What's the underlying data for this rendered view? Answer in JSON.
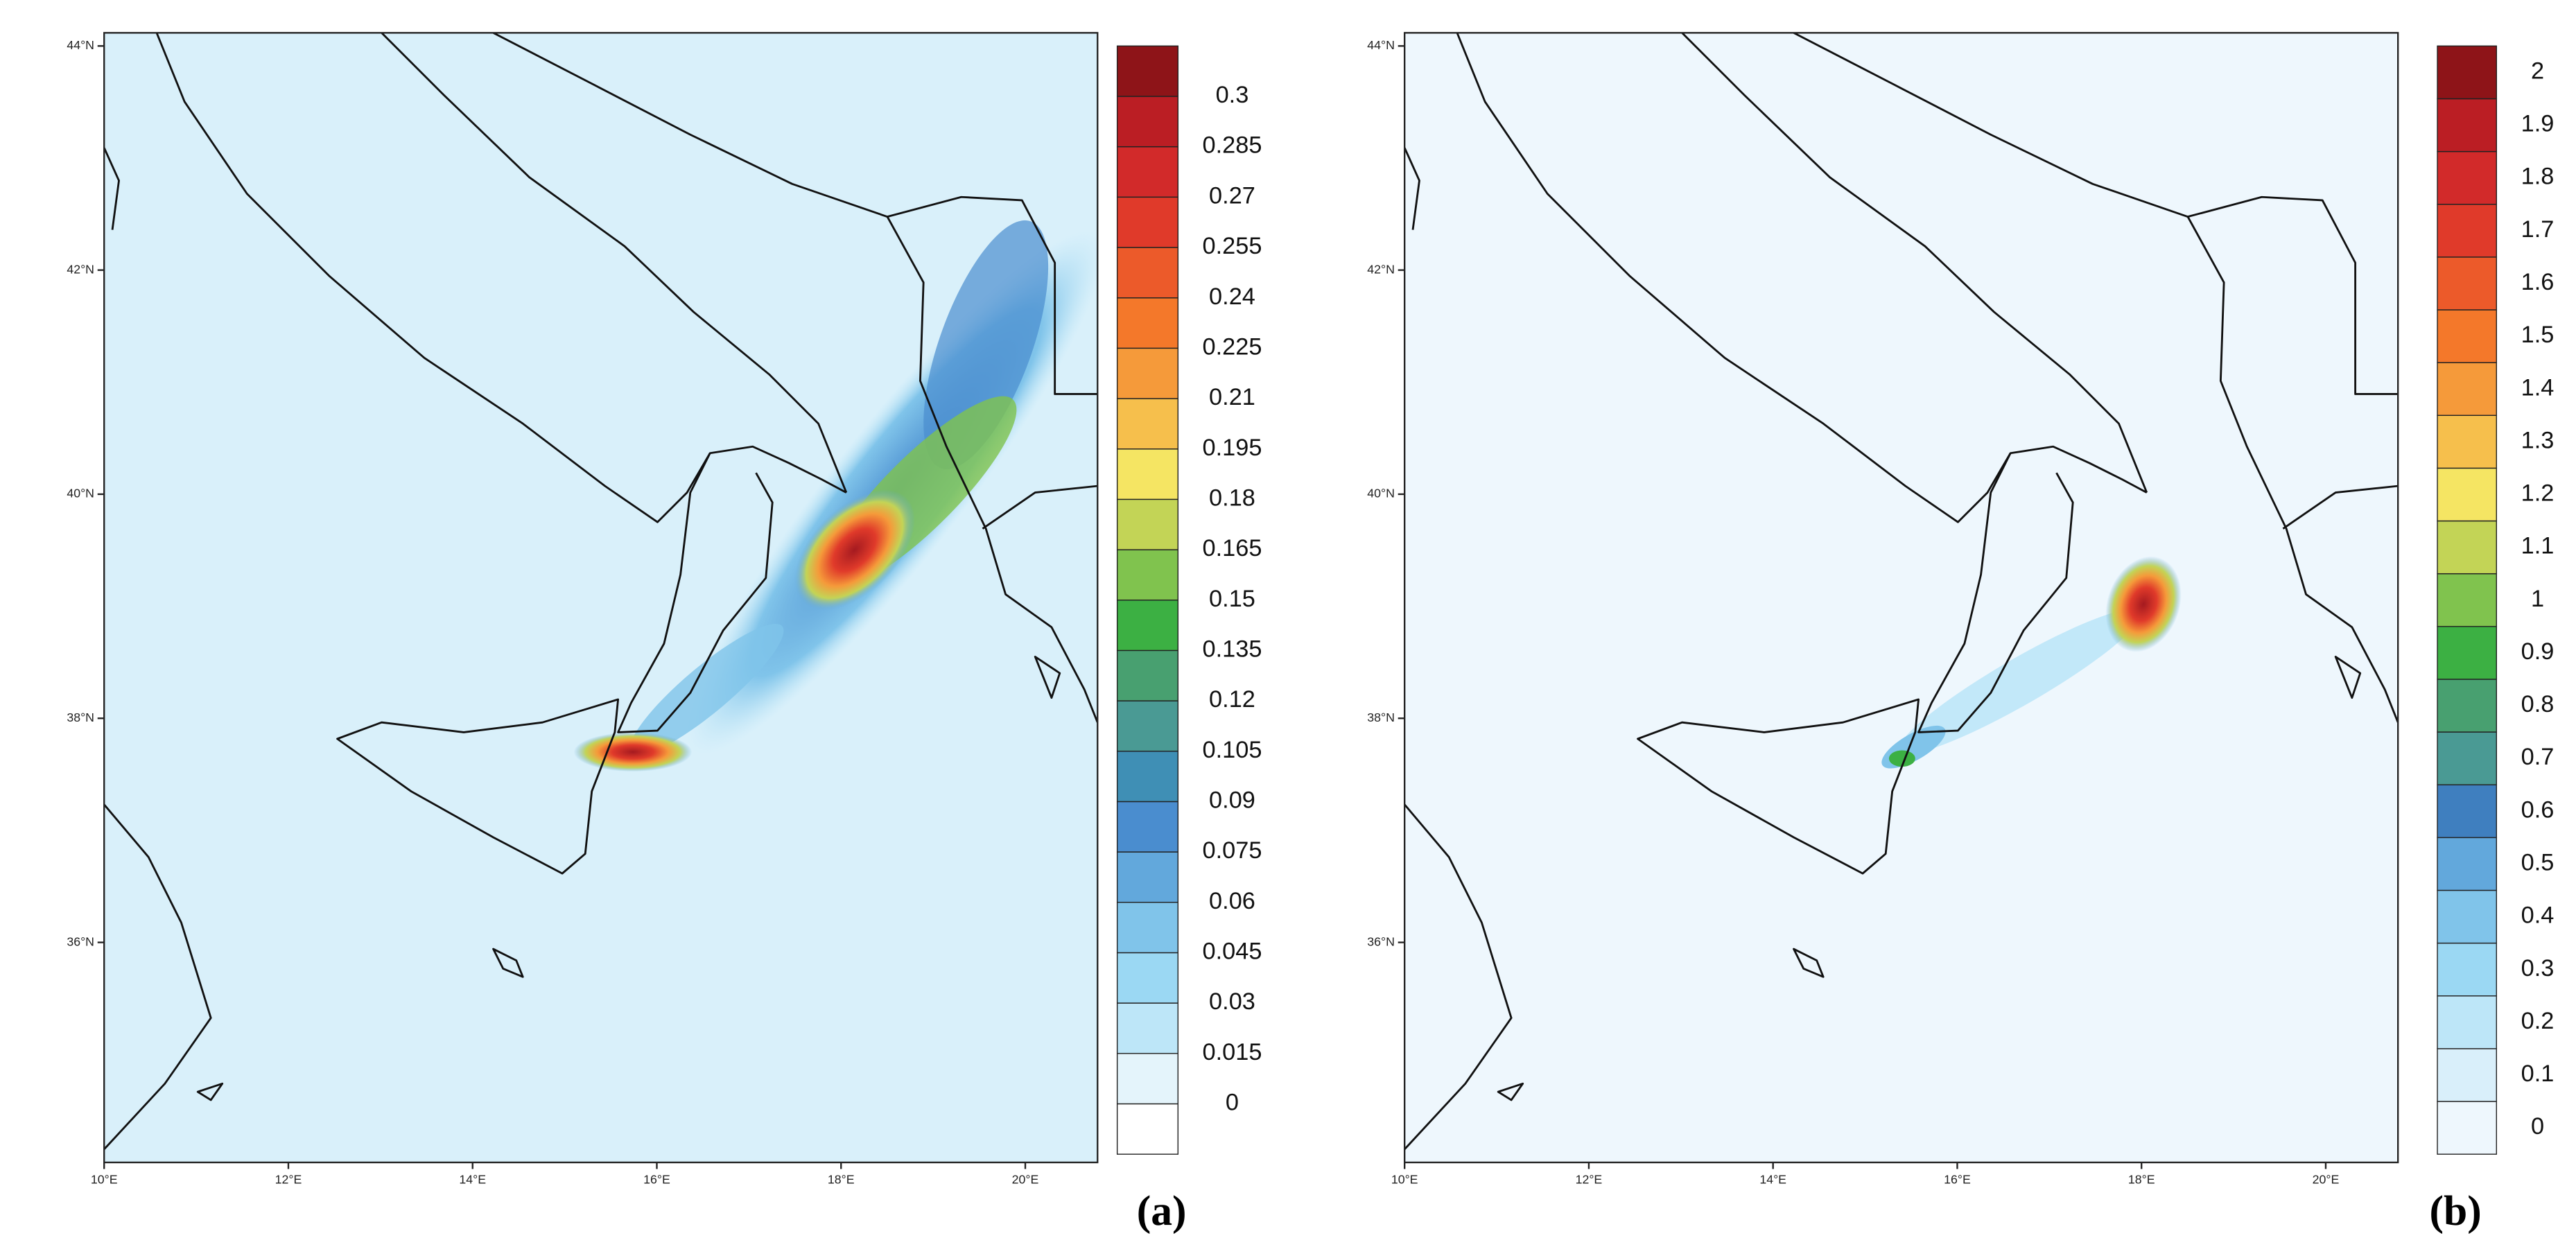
{
  "panels": [
    {
      "label": "(a)",
      "x_ticks": [
        "10°E",
        "12°E",
        "14°E",
        "16°E",
        "18°E",
        "20°E"
      ],
      "y_ticks": [
        "44°N",
        "42°N",
        "40°N",
        "38°N",
        "36°N"
      ],
      "colorbar": {
        "levels": [
          0,
          0.015,
          0.03,
          0.045,
          0.06,
          0.075,
          0.09,
          0.105,
          0.12,
          0.135,
          0.15,
          0.165,
          0.18,
          0.195,
          0.21,
          0.225,
          0.24,
          0.255,
          0.27,
          0.285,
          0.3
        ],
        "colors": [
          "#ffffff",
          "#e4f4fb",
          "#bde6f8",
          "#9bd8f3",
          "#80c4ea",
          "#62a8dc",
          "#4a8dcf",
          "#3f8fb5",
          "#4a9a94",
          "#48a070",
          "#3cb043",
          "#80c34e",
          "#c3d456",
          "#f5e563",
          "#f6bf4c",
          "#f59a3a",
          "#f4782a",
          "#ec5a2a",
          "#e03a2a",
          "#d22a2a",
          "#bb1e24",
          "#8e1418"
        ]
      }
    },
    {
      "label": "(b)",
      "x_ticks": [
        "10°E",
        "12°E",
        "14°E",
        "16°E",
        "18°E",
        "20°E"
      ],
      "y_ticks": [
        "44°N",
        "42°N",
        "40°N",
        "38°N",
        "36°N"
      ],
      "colorbar": {
        "levels": [
          0,
          0.1,
          0.2,
          0.3,
          0.4,
          0.5,
          0.6,
          0.7,
          0.8,
          0.9,
          1,
          1.1,
          1.2,
          1.3,
          1.4,
          1.5,
          1.6,
          1.7,
          1.8,
          1.9,
          2
        ],
        "colors": [
          "#eef7fd",
          "#d9effa",
          "#bde6f8",
          "#9bd8f3",
          "#80c4ea",
          "#62a8dc",
          "#3f7fbf",
          "#4a9a94",
          "#48a070",
          "#3cb043",
          "#80c34e",
          "#c3d456",
          "#f5e563",
          "#f6bf4c",
          "#f59a3a",
          "#f4782a",
          "#ec5a2a",
          "#e03a2a",
          "#d22a2a",
          "#bb1e24",
          "#8e1418"
        ]
      }
    }
  ]
}
